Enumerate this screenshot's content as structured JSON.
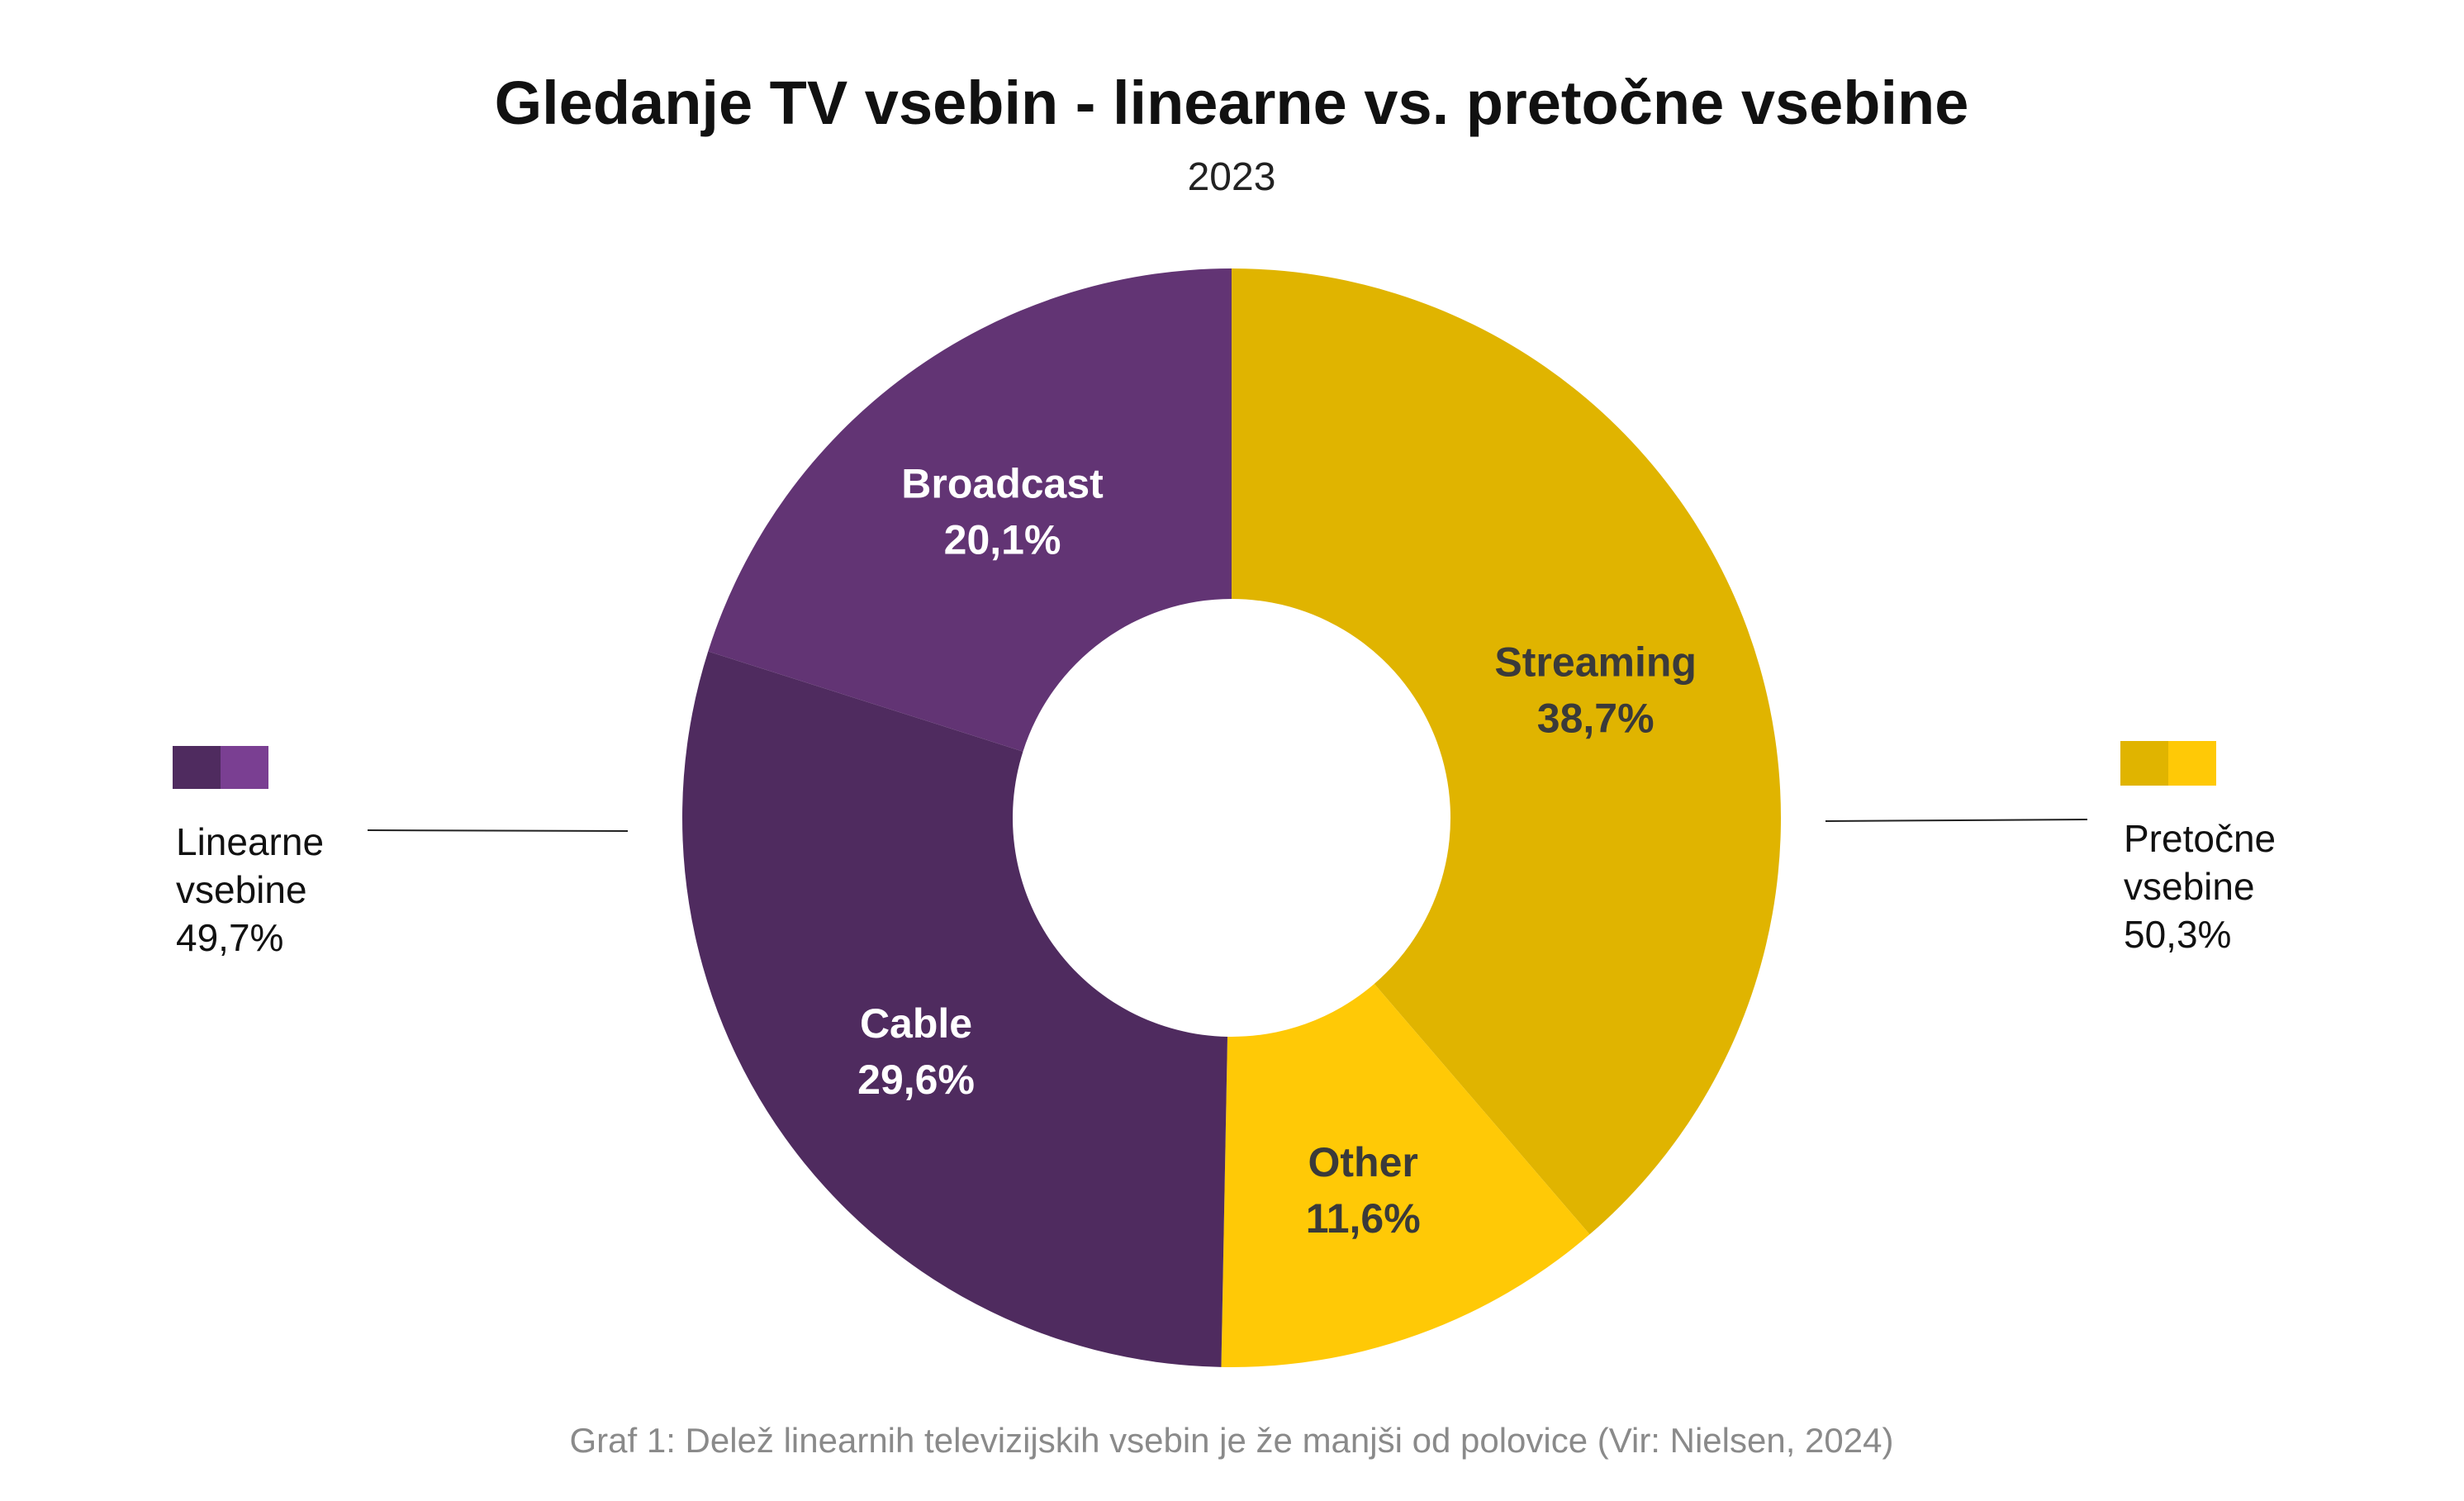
{
  "chart_data": {
    "type": "pie",
    "title": "Gledanje TV vsebin - linearne vs. pretočne vsebine",
    "subtitle": "2023",
    "slices": [
      {
        "name": "Streaming",
        "value": 38.7,
        "label": "38,7%",
        "color": "#E0B400",
        "text_color": "#3a3a3a"
      },
      {
        "name": "Other",
        "value": 11.6,
        "label": "11,6%",
        "color": "#FFC906",
        "text_color": "#3a3a3a"
      },
      {
        "name": "Cable",
        "value": 29.6,
        "label": "29,6%",
        "color": "#4F2B5F",
        "text_color": "#ffffff"
      },
      {
        "name": "Broadcast",
        "value": 20.1,
        "label": "20,1%",
        "color": "#623474",
        "text_color": "#ffffff"
      }
    ],
    "groups": [
      {
        "line1": "Linearne",
        "line2": "vsebine",
        "value_label": "49,7%",
        "value": 49.7,
        "colors": [
          "#4F2B5F",
          "#7A3F92"
        ],
        "side": "left"
      },
      {
        "line1": "Pretočne",
        "line2": "vsebine",
        "value_label": "50,3%",
        "value": 50.3,
        "colors": [
          "#E0B400",
          "#FFC906"
        ],
        "side": "right"
      }
    ],
    "caption": "Graf 1: Delež linearnih televizijskih vsebin je že manjši od polovice (Vir: Nielsen, 2024)"
  }
}
